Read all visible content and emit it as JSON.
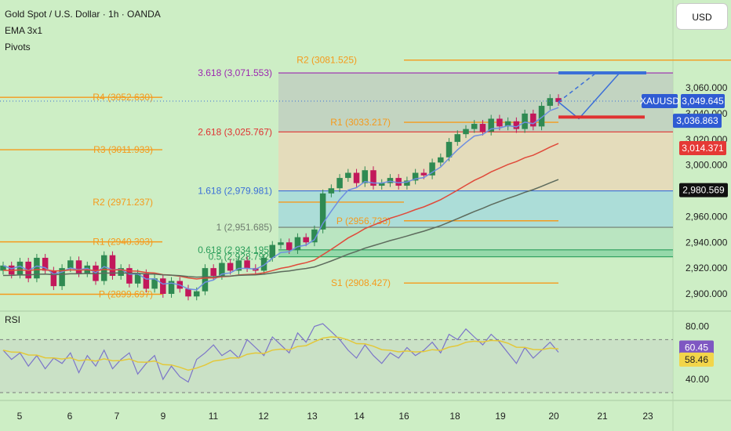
{
  "header": {
    "symbol_line": "Gold Spot / U.S. Dollar · 1h · OANDA",
    "ema_label": "EMA 3x1",
    "pivots_label": "Pivots",
    "currency": "USD",
    "rsi_label": "RSI"
  },
  "colors": {
    "background": "#cdeec5",
    "pivot": "#f59a1c",
    "fib_red": "#e03131",
    "fib_blue": "#3b6fd8",
    "fib_green": "#2a9d5a",
    "ema_fast": "#6f8fe0",
    "ema_mid": "#e04a3a",
    "ema_slow": "#5d6b5d",
    "candle_up": "#2f8a52",
    "candle_down": "#c2185b",
    "rsi_line": "#7b74c9",
    "rsi_signal": "#e3c83a"
  },
  "chart_data": [
    {
      "type": "candlestick",
      "title": "Gold Spot / U.S. Dollar · 1h · OANDA",
      "x_ticks": [
        "5",
        "6",
        "7",
        "9",
        "11",
        "12",
        "13",
        "14",
        "16",
        "18",
        "19",
        "20",
        "21",
        "23"
      ],
      "y_ticks": [
        "2,900.000",
        "2,920.000",
        "2,940.000",
        "2,960.000",
        "2,980.000",
        "3,000.000",
        "3,020.000",
        "3,040.000",
        "3,060.000"
      ],
      "ylim": [
        2890,
        3078
      ],
      "series_close_path": [
        2922,
        2915,
        2925,
        2912,
        2928,
        2918,
        2906,
        2920,
        2926,
        2916,
        2922,
        2910,
        2930,
        2914,
        2920,
        2908,
        2916,
        2904,
        2912,
        2900,
        2910,
        2904,
        2898,
        2902,
        2920,
        2914,
        2924,
        2918,
        2926,
        2920,
        2918,
        2928,
        2938,
        2940,
        2934,
        2944,
        2940,
        2950,
        2978,
        2982,
        2990,
        2994,
        2986,
        2996,
        2984,
        2986,
        2990,
        2984,
        2988,
        2994,
        2992,
        3002,
        3006,
        3018,
        3024,
        3028,
        3032,
        3026,
        3036,
        3030,
        3034,
        3028,
        3040,
        3030,
        3046,
        3052,
        3049
      ],
      "price_labels": [
        {
          "text": "XAUUSD",
          "value": 3049.645,
          "color": "#2f5bd3"
        },
        {
          "text": "3,049.645",
          "value": 3049.645,
          "color": "#2f5bd3"
        },
        {
          "text": "3,036.863",
          "value": 3036.863,
          "color": "#2f5bd3"
        },
        {
          "text": "3,014.371",
          "value": 3014.371,
          "color": "#e53935"
        },
        {
          "text": "2,980.569",
          "value": 2980.569,
          "color": "#111111"
        }
      ],
      "pivot_levels": [
        {
          "label": "R2 (3081.525)",
          "value": 3081.525
        },
        {
          "label": "R4 (3052.630)",
          "value": 3052.63
        },
        {
          "label": "R1 (3033.217)",
          "value": 3033.217
        },
        {
          "label": "R3 (3011.933)",
          "value": 3011.933
        },
        {
          "label": "R2 (2971.237)",
          "value": 2971.237
        },
        {
          "label": "P (2956.733)",
          "value": 2956.733
        },
        {
          "label": "R1 (2940.393)",
          "value": 2940.393
        },
        {
          "label": "S1 (2908.427)",
          "value": 2908.427
        },
        {
          "label": "P (2899.697)",
          "value": 2899.697
        }
      ],
      "fib_levels": [
        {
          "label": "3.618 (3,071.553)",
          "value": 3071.553
        },
        {
          "label": "2.618 (3,025.767)",
          "value": 3025.767
        },
        {
          "label": "1.618 (2,979.981)",
          "value": 2979.981
        },
        {
          "label": "1 (2,951.685)",
          "value": 2951.685
        },
        {
          "label": "0.618 (2,934.195)",
          "value": 2934.195
        },
        {
          "label": "0.5 (2,928.792)",
          "value": 2928.792
        }
      ]
    },
    {
      "type": "line",
      "title": "RSI",
      "y_ticks": [
        "80.00",
        "40.00"
      ],
      "ylim": [
        30,
        85
      ],
      "current": [
        {
          "text": "60.45",
          "value": 60.45
        },
        {
          "text": "58.46",
          "value": 58.46
        }
      ],
      "rsi_path": [
        62,
        55,
        60,
        50,
        58,
        48,
        56,
        52,
        60,
        45,
        58,
        50,
        62,
        48,
        55,
        60,
        44,
        52,
        58,
        40,
        50,
        42,
        38,
        55,
        60,
        66,
        58,
        62,
        56,
        70,
        64,
        58,
        72,
        66,
        60,
        75,
        68,
        80,
        82,
        76,
        70,
        62,
        56,
        66,
        58,
        52,
        60,
        56,
        64,
        58,
        62,
        68,
        60,
        74,
        70,
        78,
        72,
        66,
        74,
        68,
        60,
        52,
        64,
        56,
        62,
        68,
        60.45
      ]
    }
  ]
}
